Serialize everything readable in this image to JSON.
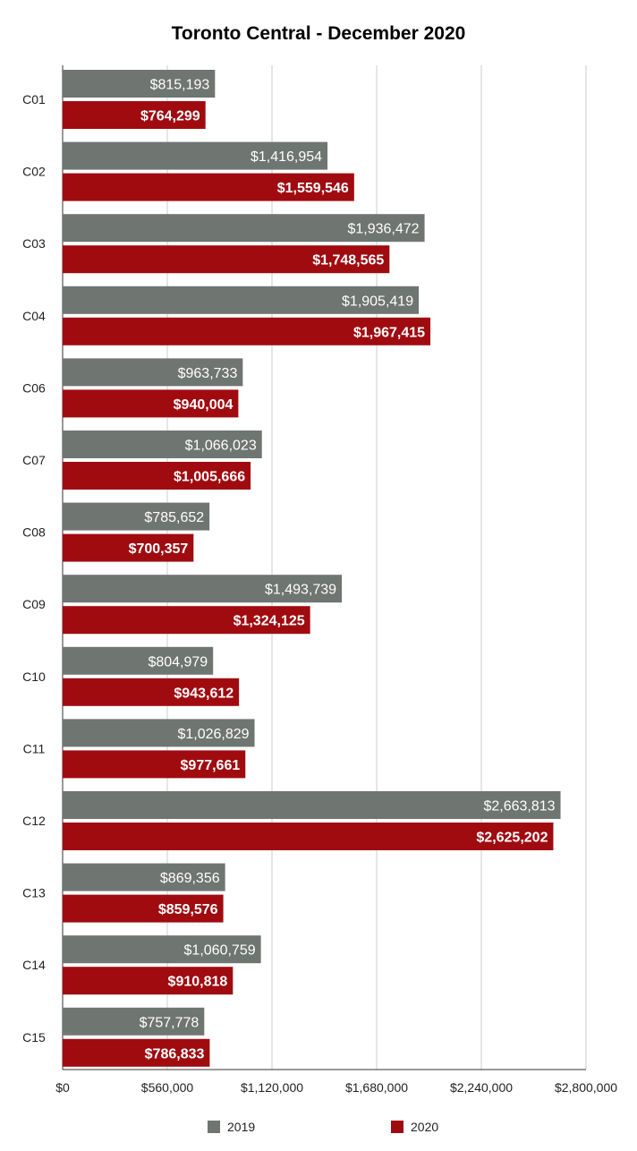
{
  "chart_data": {
    "type": "bar",
    "orientation": "horizontal",
    "title": "Toronto Central - December 2020",
    "xlabel": "",
    "ylabel": "",
    "categories": [
      "C01",
      "C02",
      "C03",
      "C04",
      "C06",
      "C07",
      "C08",
      "C09",
      "C10",
      "C11",
      "C12",
      "C13",
      "C14",
      "C15"
    ],
    "series": [
      {
        "name": "2019",
        "color": "#6f7571",
        "values": [
          815193,
          1416954,
          1936472,
          1905419,
          963733,
          1066023,
          785652,
          1493739,
          804979,
          1026829,
          2663813,
          869356,
          1060759,
          757778
        ],
        "labels": [
          "$815,193",
          "$1,416,954",
          "$1,936,472",
          "$1,905,419",
          "$963,733",
          "$1,066,023",
          "$785,652",
          "$1,493,739",
          "$804,979",
          "$1,026,829",
          "$2,663,813",
          "$869,356",
          "$1,060,759",
          "$757,778"
        ]
      },
      {
        "name": "2020",
        "color": "#a00b10",
        "values": [
          764299,
          1559546,
          1748565,
          1967415,
          940004,
          1005666,
          700357,
          1324125,
          943612,
          977661,
          2625202,
          859576,
          910818,
          786833
        ],
        "labels": [
          "$764,299",
          "$1,559,546",
          "$1,748,565",
          "$1,967,415",
          "$940,004",
          "$1,005,666",
          "$700,357",
          "$1,324,125",
          "$943,612",
          "$977,661",
          "$2,625,202",
          "$859,576",
          "$910,818",
          "$786,833"
        ]
      }
    ],
    "xlim": [
      0,
      2800000
    ],
    "xticks": [
      0,
      560000,
      1120000,
      1680000,
      2240000,
      2800000
    ],
    "xtick_labels": [
      "$0",
      "$560,000",
      "$1,120,000",
      "$1,680,000",
      "$2,240,000",
      "$2,800,000"
    ],
    "grid": true,
    "legend_position": "bottom"
  }
}
